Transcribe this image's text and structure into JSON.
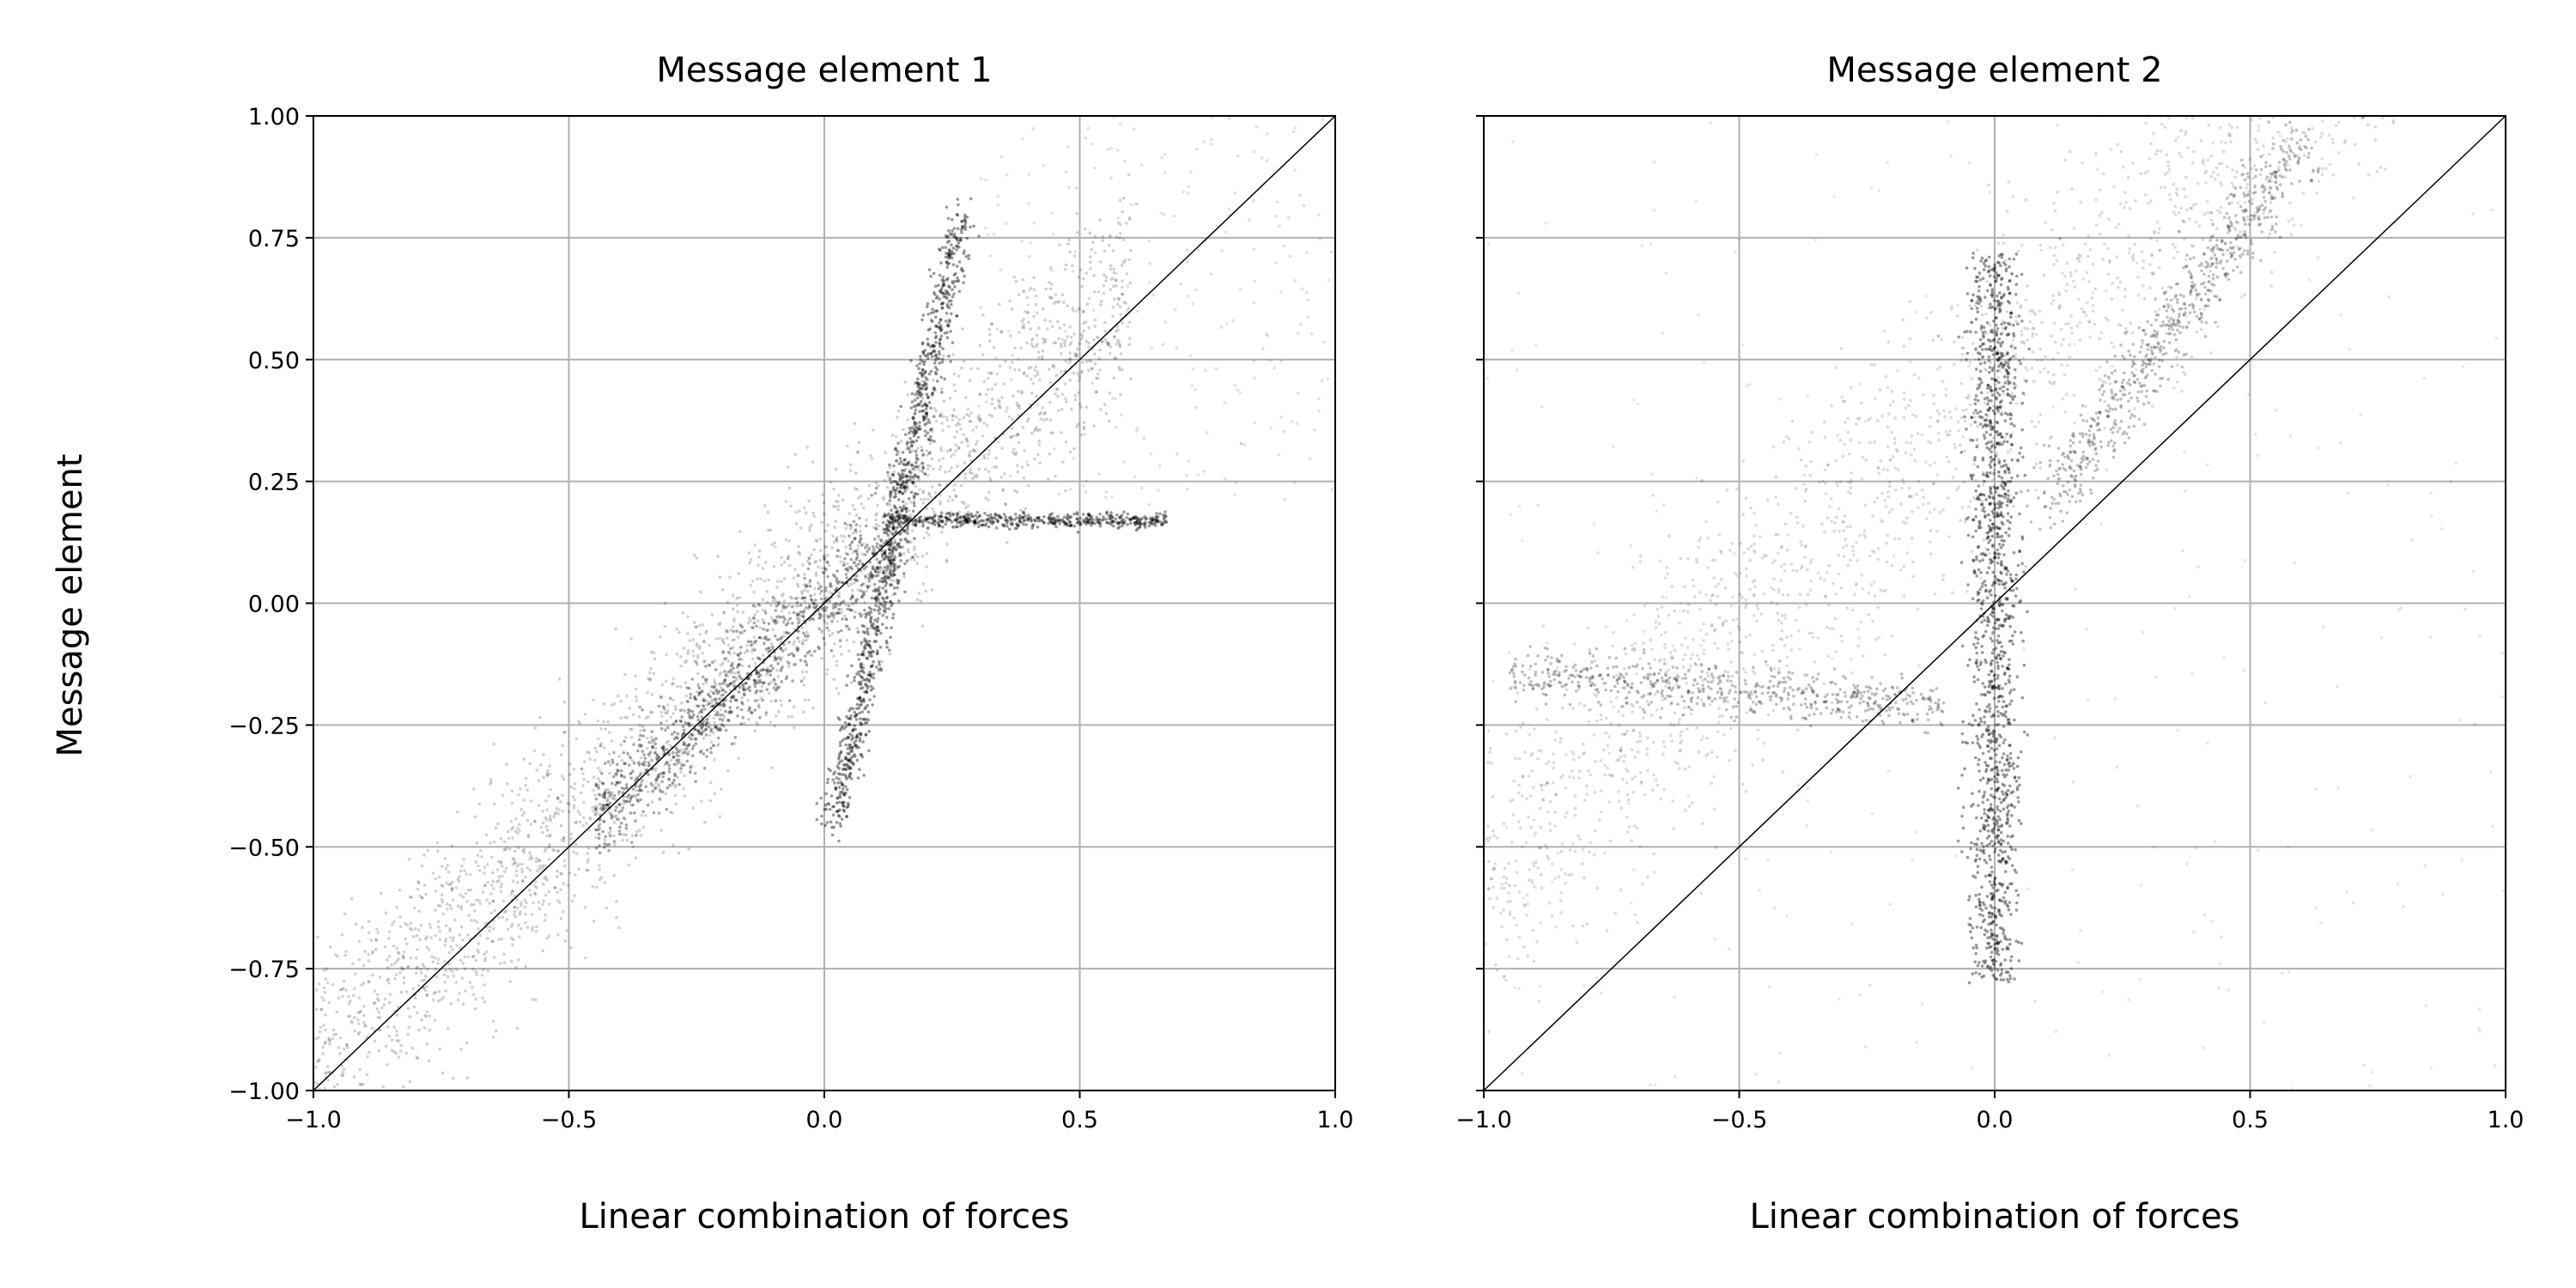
{
  "chart_data": [
    {
      "type": "scatter",
      "title": "Message element 1",
      "xlabel": "Linear combination of forces",
      "ylabel": "Message element",
      "xlim": [
        -1.0,
        1.0
      ],
      "ylim": [
        -1.0,
        1.0
      ],
      "xticks": [
        "−1.0",
        "−0.5",
        "0.0",
        "0.5",
        "1.0"
      ],
      "yticks": [
        "−1.00",
        "−0.75",
        "−0.50",
        "−0.25",
        "0.00",
        "0.25",
        "0.50",
        "0.75",
        "1.00"
      ],
      "grid": true,
      "reference_line": {
        "x": [
          -1.0,
          1.0
        ],
        "y": [
          -1.0,
          1.0
        ]
      },
      "point_color": "#000000",
      "series": [
        {
          "description_points": [
            {
              "x": -0.95,
              "y": -0.95
            },
            {
              "x": -0.7,
              "y": -0.75
            },
            {
              "x": -0.5,
              "y": -0.5
            },
            {
              "x": -0.3,
              "y": -0.25
            },
            {
              "x": -0.1,
              "y": -0.05
            },
            {
              "x": 0.0,
              "y": 0.0
            },
            {
              "x": 0.05,
              "y": -0.3
            },
            {
              "x": 0.08,
              "y": -0.45
            },
            {
              "x": 0.12,
              "y": 0.2
            },
            {
              "x": 0.2,
              "y": 0.45
            },
            {
              "x": 0.25,
              "y": 0.75
            },
            {
              "x": 0.3,
              "y": 0.9
            },
            {
              "x": 0.4,
              "y": 0.18
            },
            {
              "x": 0.55,
              "y": 0.17
            },
            {
              "x": 0.65,
              "y": 0.15
            },
            {
              "x": 0.5,
              "y": 0.5
            },
            {
              "x": 0.8,
              "y": 0.7
            },
            {
              "x": -0.2,
              "y": 0.2
            },
            {
              "x": 0.35,
              "y": -0.1
            },
            {
              "x": -0.45,
              "y": -0.8
            }
          ]
        }
      ]
    },
    {
      "type": "scatter",
      "title": "Message element 2",
      "xlabel": "Linear combination of forces",
      "ylabel": "",
      "xlim": [
        -1.0,
        1.0
      ],
      "ylim": [
        -1.0,
        1.0
      ],
      "xticks": [
        "−1.0",
        "−0.5",
        "0.0",
        "0.5",
        "1.0"
      ],
      "yticks": [],
      "grid": true,
      "reference_line": {
        "x": [
          -1.0,
          1.0
        ],
        "y": [
          -1.0,
          1.0
        ]
      },
      "point_color": "#000000",
      "series": [
        {
          "description_points": [
            {
              "x": -0.9,
              "y": -0.4
            },
            {
              "x": -0.6,
              "y": -0.15
            },
            {
              "x": -0.3,
              "y": -0.22
            },
            {
              "x": -0.1,
              "y": -0.25
            },
            {
              "x": 0.0,
              "y": 0.6
            },
            {
              "x": 0.0,
              "y": 0.3
            },
            {
              "x": 0.0,
              "y": -0.5
            },
            {
              "x": -0.05,
              "y": -0.75
            },
            {
              "x": 0.05,
              "y": -0.6
            },
            {
              "x": 0.1,
              "y": 0.75
            },
            {
              "x": 0.2,
              "y": 0.2
            },
            {
              "x": 0.3,
              "y": 0.6
            },
            {
              "x": 0.5,
              "y": 0.9
            },
            {
              "x": 0.7,
              "y": 0.95
            },
            {
              "x": -0.15,
              "y": 0.28
            },
            {
              "x": -0.3,
              "y": 0.2
            },
            {
              "x": 0.6,
              "y": 0.4
            },
            {
              "x": 0.8,
              "y": 0.2
            },
            {
              "x": -0.5,
              "y": -0.8
            },
            {
              "x": 0.3,
              "y": -0.4
            }
          ]
        }
      ]
    }
  ]
}
